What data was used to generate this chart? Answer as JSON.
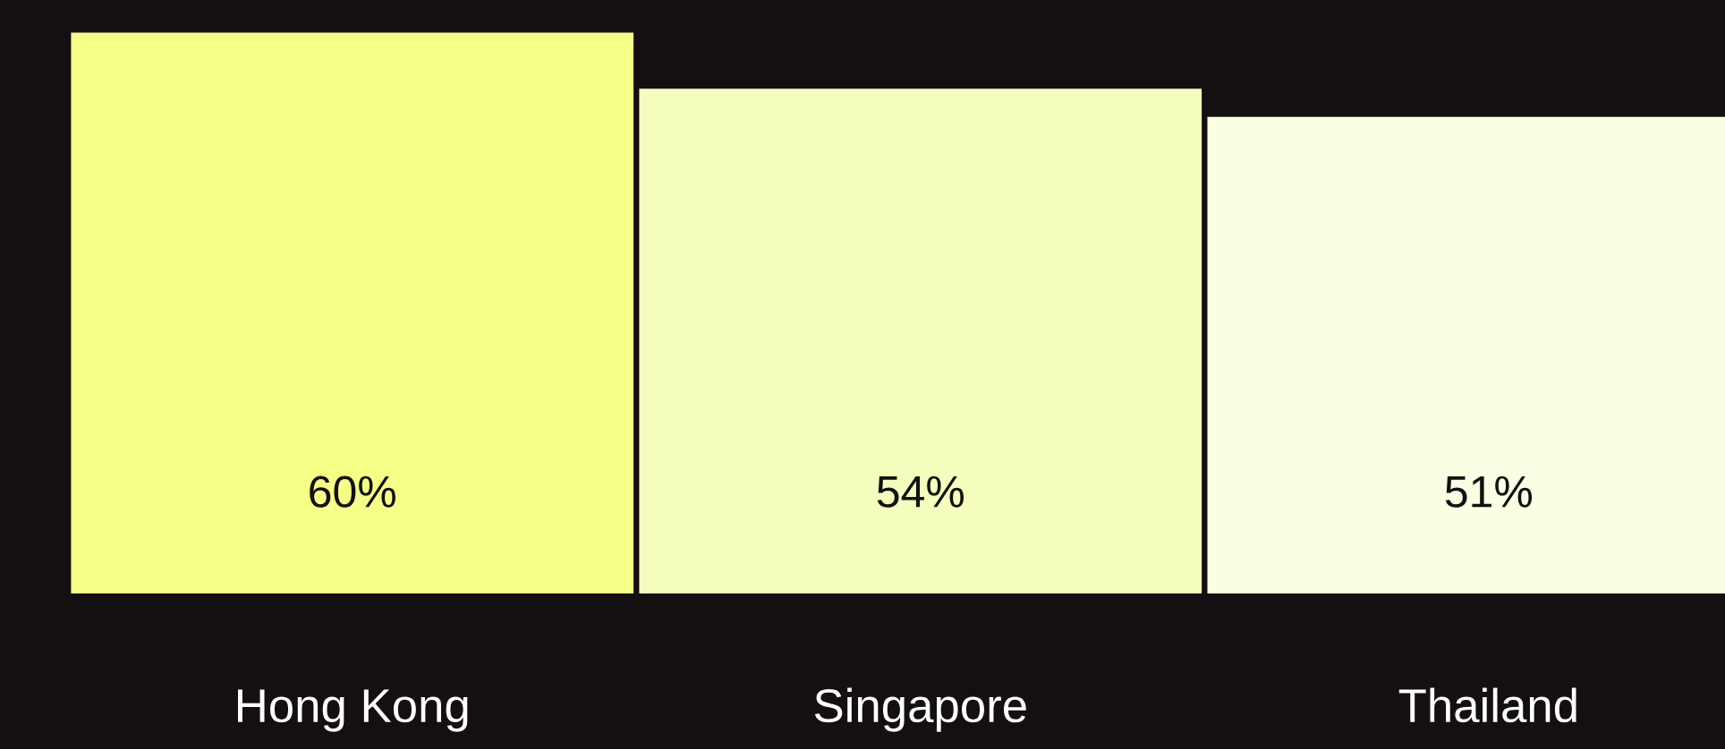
{
  "chart_data": {
    "type": "bar",
    "categories": [
      "Hong Kong",
      "Singapore",
      "Thailand"
    ],
    "values": [
      60,
      54,
      51
    ],
    "colors": [
      "#f5ff85",
      "#f5fdbd",
      "#fafee3"
    ],
    "value_labels": [
      "60%",
      "54%",
      "51%"
    ],
    "ylim": [
      0,
      63.5
    ],
    "grid": false,
    "legend": false
  }
}
